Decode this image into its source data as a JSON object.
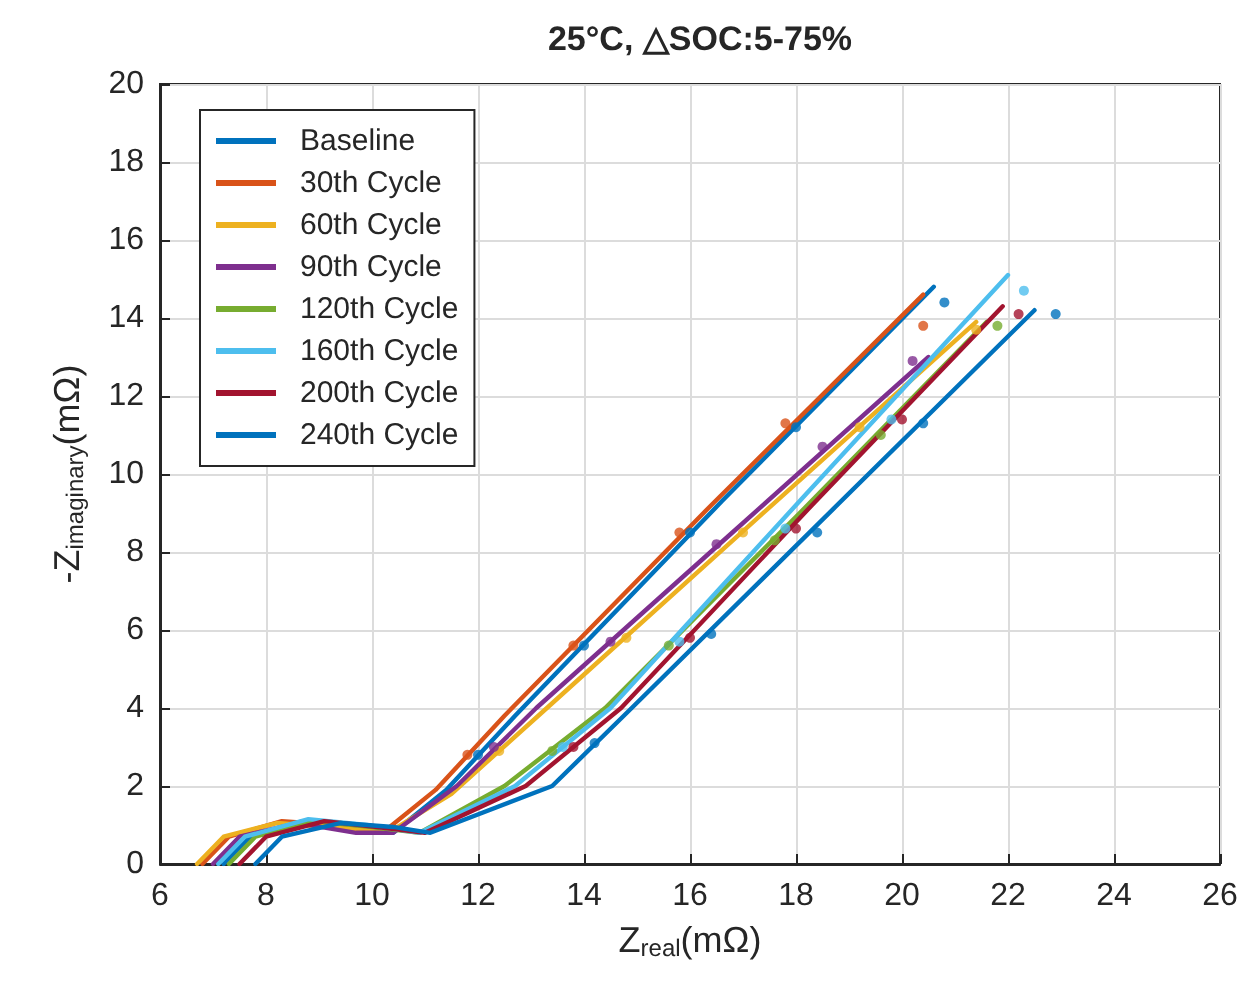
{
  "chart_data": {
    "type": "line",
    "title": "25°C, △SOC:5-75%",
    "xlabel": "Z$_{real}$(mΩ)",
    "ylabel": "-Z$_{imaginary}$(mΩ)",
    "xlim": [
      6,
      26
    ],
    "xticks": [
      6,
      8,
      10,
      12,
      14,
      16,
      18,
      20,
      22,
      24,
      26
    ],
    "ylim": [
      0,
      20
    ],
    "yticks": [
      0,
      2,
      4,
      6,
      8,
      10,
      12,
      14,
      16,
      18,
      20
    ],
    "grid": true,
    "legend": "top left",
    "series": [
      {
        "name": "Baseline",
        "color": "#0072bd",
        "x": [
          7.2,
          7.7,
          8.7,
          9.7,
          10.4,
          11.4,
          12.7,
          16.6,
          20.6
        ],
        "values": [
          0,
          0.7,
          1.1,
          1.0,
          0.8,
          1.9,
          3.8,
          9.3,
          14.8
        ]
      },
      {
        "name": "30th Cycle",
        "color": "#d95319",
        "x": [
          6.8,
          7.3,
          8.3,
          9.3,
          10.2,
          11.2,
          12.5,
          16.4,
          20.4
        ],
        "values": [
          0,
          0.7,
          1.1,
          1.0,
          0.8,
          1.9,
          3.8,
          9.2,
          14.6
        ]
      },
      {
        "name": "60th Cycle",
        "color": "#edb120",
        "x": [
          6.7,
          7.2,
          8.2,
          9.2,
          10.3,
          11.5,
          13.3,
          17.3,
          21.4
        ],
        "values": [
          0,
          0.7,
          1.05,
          0.95,
          0.8,
          1.8,
          4.0,
          8.9,
          13.9
        ]
      },
      {
        "name": "90th Cycle",
        "color": "#7e2f8e",
        "x": [
          7.0,
          7.5,
          8.6,
          9.7,
          10.4,
          11.6,
          13.1,
          16.8,
          20.5
        ],
        "values": [
          0,
          0.7,
          1.05,
          0.8,
          0.8,
          2.0,
          4.0,
          8.5,
          13.0
        ]
      },
      {
        "name": "120th Cycle",
        "color": "#77ac30",
        "x": [
          7.3,
          7.8,
          8.9,
          10.0,
          10.9,
          12.5,
          14.4,
          18.0,
          21.6
        ],
        "values": [
          0,
          0.7,
          1.1,
          0.95,
          0.8,
          2.0,
          4.0,
          8.9,
          13.9
        ]
      },
      {
        "name": "160th Cycle",
        "color": "#4dbeee",
        "x": [
          7.1,
          7.6,
          8.8,
          9.9,
          10.9,
          12.7,
          14.5,
          18.2,
          22.0
        ],
        "values": [
          0,
          0.7,
          1.15,
          1.0,
          0.8,
          2.0,
          4.0,
          9.5,
          15.1
        ]
      },
      {
        "name": "200th Cycle",
        "color": "#a2142f",
        "x": [
          7.5,
          8.0,
          9.1,
          10.1,
          11.0,
          12.9,
          14.7,
          18.3,
          21.9
        ],
        "values": [
          0,
          0.7,
          1.1,
          0.95,
          0.8,
          2.0,
          4.0,
          9.2,
          14.3
        ]
      },
      {
        "name": "240th Cycle",
        "color": "#0072bd",
        "x": [
          7.8,
          8.3,
          9.4,
          10.4,
          11.1,
          13.4,
          14.9,
          18.7,
          22.5
        ],
        "values": [
          0,
          0.7,
          1.05,
          0.95,
          0.8,
          2.0,
          4.0,
          9.1,
          14.2
        ]
      },
      {
        "type": "scatter",
        "color": "#0072bd",
        "x": [
          12.0,
          14.0,
          16.0,
          18.0,
          20.8
        ],
        "values": [
          2.8,
          5.6,
          8.5,
          11.2,
          14.4
        ]
      },
      {
        "type": "scatter",
        "color": "#d95319",
        "x": [
          11.8,
          13.8,
          15.8,
          17.8,
          20.4
        ],
        "values": [
          2.8,
          5.6,
          8.5,
          11.3,
          13.8
        ]
      },
      {
        "type": "scatter",
        "color": "#edb120",
        "x": [
          12.4,
          14.8,
          17.0,
          19.2,
          21.4
        ],
        "values": [
          2.9,
          5.8,
          8.5,
          11.2,
          13.7
        ]
      },
      {
        "type": "scatter",
        "color": "#7e2f8e",
        "x": [
          12.3,
          14.5,
          16.5,
          18.5,
          20.2
        ],
        "values": [
          3.0,
          5.7,
          8.2,
          10.7,
          12.9
        ]
      },
      {
        "type": "scatter",
        "color": "#77ac30",
        "x": [
          13.4,
          15.6,
          17.6,
          19.6,
          21.8
        ],
        "values": [
          2.9,
          5.6,
          8.3,
          11.0,
          13.8
        ]
      },
      {
        "type": "scatter",
        "color": "#4dbeee",
        "x": [
          13.6,
          15.8,
          17.8,
          19.8,
          22.3
        ],
        "values": [
          3.0,
          5.7,
          8.6,
          11.4,
          14.7
        ]
      },
      {
        "type": "scatter",
        "color": "#a2142f",
        "x": [
          13.8,
          16.0,
          18.0,
          20.0,
          22.2
        ],
        "values": [
          3.0,
          5.8,
          8.6,
          11.4,
          14.1
        ]
      },
      {
        "type": "scatter",
        "color": "#0072bd",
        "x": [
          14.2,
          16.4,
          18.4,
          20.4,
          22.9
        ],
        "values": [
          3.1,
          5.9,
          8.5,
          11.3,
          14.1
        ]
      }
    ]
  }
}
